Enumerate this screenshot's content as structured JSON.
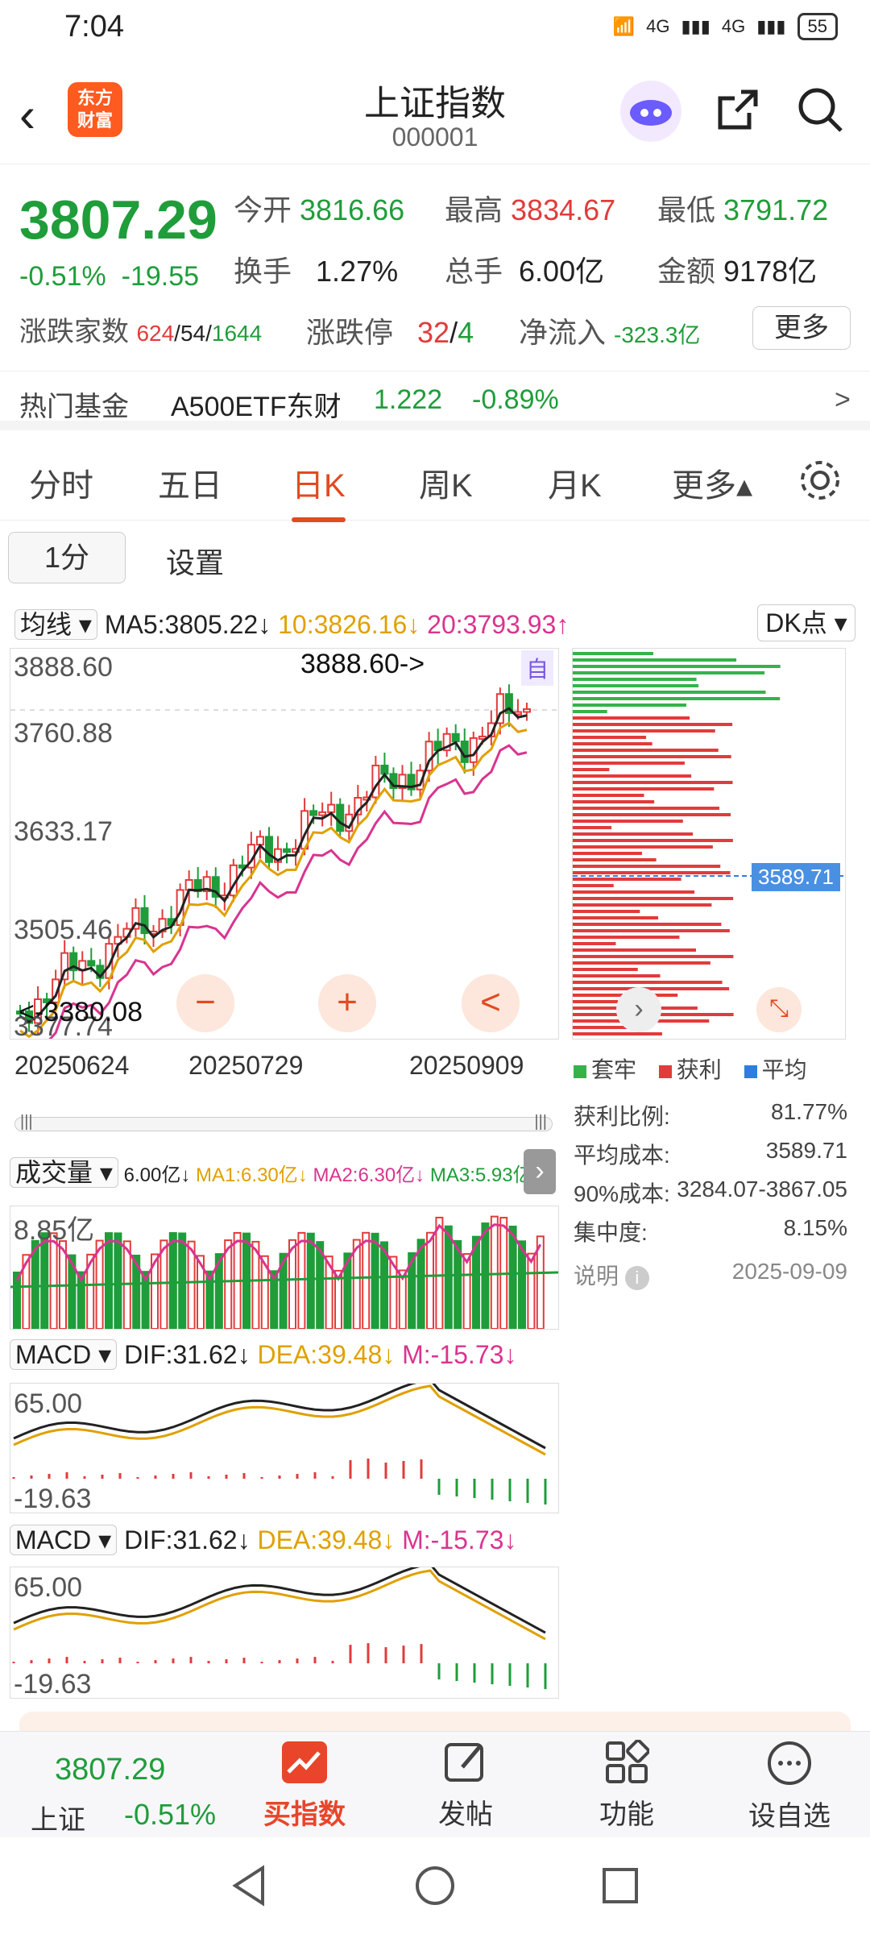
{
  "status": {
    "time": "7:04",
    "signal1": "4G",
    "signal2": "4G",
    "battery": "55"
  },
  "header": {
    "logo_line1": "东方",
    "logo_line2": "财富",
    "title": "上证指数",
    "code": "000001"
  },
  "quote": {
    "price": "3807.29",
    "change_pct": "-0.51%",
    "change_abs": "-19.55",
    "open_label": "今开",
    "open": "3816.66",
    "high_label": "最高",
    "high": "3834.67",
    "low_label": "最低",
    "low": "3791.72",
    "turnover_label": "换手",
    "turnover": "1.27%",
    "volume_label": "总手",
    "volume": "6.00亿",
    "amount_label": "金额",
    "amount": "9178亿",
    "updown_label": "涨跌家数",
    "up": "624",
    "flat": "54",
    "down": "1644",
    "limit_label": "涨跌停",
    "limit_up": "32",
    "limit_down": "4",
    "inflow_label": "净流入",
    "inflow": "-323.3亿",
    "more": "更多"
  },
  "fund": {
    "label": "热门基金",
    "name": "A500ETF东财",
    "price": "1.222",
    "change": "-0.89%",
    "arrow": ">"
  },
  "tabs": [
    {
      "label": "分时"
    },
    {
      "label": "五日"
    },
    {
      "label": "日K"
    },
    {
      "label": "周K"
    },
    {
      "label": "月K"
    },
    {
      "label": "更多▴"
    }
  ],
  "sub": {
    "interval": "1分",
    "settings": "设置"
  },
  "kline": {
    "ma_select": "均线",
    "ma5": "MA5:3805.22↓",
    "ma10": "10:3826.16↓",
    "ma20": "20:3793.93↑",
    "dk": "DK点",
    "y_labels": [
      "3888.60",
      "3760.88",
      "3633.17",
      "3505.46",
      "3377.74"
    ],
    "max_note": "3888.60->",
    "min_note": "<-3380.08",
    "auto": "自",
    "x_labels": [
      "20250624",
      "20250729",
      "20250909"
    ],
    "ctrl_minus": "−",
    "ctrl_plus": "+",
    "ctrl_left": "<"
  },
  "chips": {
    "price_tag": "3589.71",
    "legend": [
      {
        "label": "套牢",
        "color": "#35b34a"
      },
      {
        "label": "获利",
        "color": "#e23b3b"
      },
      {
        "label": "平均",
        "color": "#2f7de1"
      }
    ],
    "rows": [
      {
        "label": "获利比例:",
        "value": "81.77%"
      },
      {
        "label": "平均成本:",
        "value": "3589.71"
      },
      {
        "label": "90%成本:",
        "value": "3284.07-3867.05"
      },
      {
        "label": "集中度:",
        "value": "8.15%"
      }
    ],
    "note": "说明",
    "date": "2025-09-09"
  },
  "volume": {
    "select": "成交量",
    "v": "6.00亿↓",
    "ma1": "MA1:6.30亿↓",
    "ma2": "MA2:6.30亿↓",
    "ma3": "MA3:5.93亿↑",
    "ymax": "8.85亿"
  },
  "macd1": {
    "select": "MACD",
    "dif": "DIF:31.62↓",
    "dea": "DEA:39.48↓",
    "m": "M:-15.73↓",
    "ymax": "65.00",
    "ymin": "-19.63"
  },
  "macd2": {
    "select": "MACD",
    "dif": "DIF:31.62↓",
    "dea": "DEA:39.48↓",
    "m": "M:-15.73↓",
    "ymax": "65.00",
    "ymin": "-19.63"
  },
  "bottom": {
    "price": "3807.29",
    "name": "上证",
    "chg": "-0.51%",
    "buy": "买指数",
    "post": "发帖",
    "func": "功能",
    "watch": "设自选"
  }
}
